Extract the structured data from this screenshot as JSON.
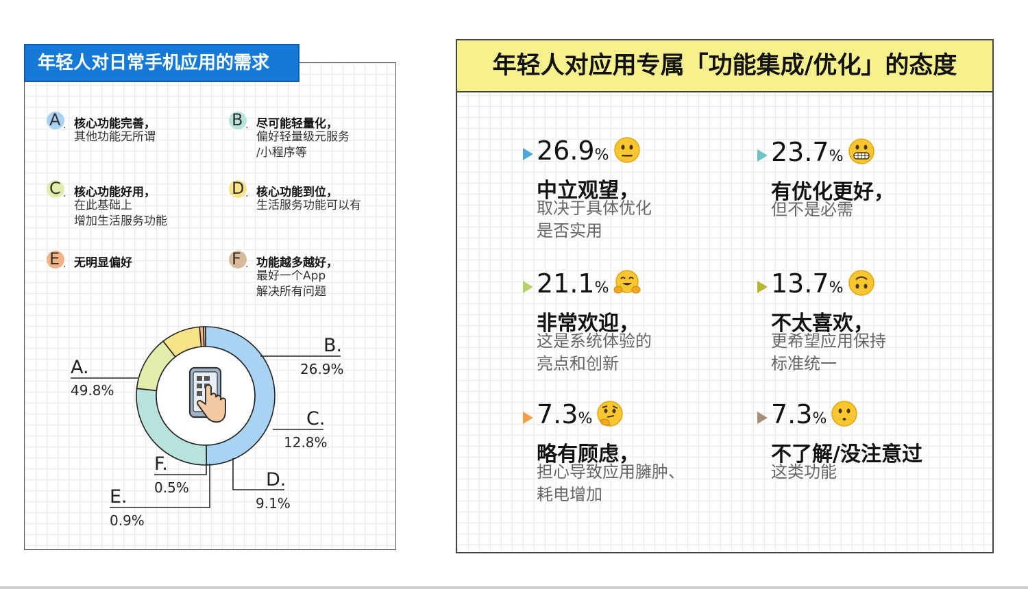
{
  "left": {
    "title": "年轻人对日常手机应用的需求",
    "options": [
      {
        "letter": "A",
        "head": "核心功能完善，",
        "sub": [
          "其他功能无所谓"
        ],
        "color": "#a9d3f3"
      },
      {
        "letter": "B",
        "head": "尽可能轻量化，",
        "sub": [
          "偏好轻量级元服务",
          "/小程序等"
        ],
        "color": "#b7e3dc"
      },
      {
        "letter": "C",
        "head": "核心功能好用，",
        "sub": [
          "在此基础上",
          "增加生活服务功能"
        ],
        "color": "#e3ecaa"
      },
      {
        "letter": "D",
        "head": "核心功能到位，",
        "sub": [
          "生活服务功能可以有"
        ],
        "color": "#f7e488"
      },
      {
        "letter": "E",
        "head": "无明显偏好",
        "sub": [],
        "color": "#f2b487"
      },
      {
        "letter": "F",
        "head": "功能越多越好，",
        "sub": [
          "最好一个App",
          "解决所有问题"
        ],
        "color": "#d8b99a"
      }
    ]
  },
  "chart_data": {
    "type": "pie",
    "categories": [
      "A.",
      "B.",
      "C.",
      "D.",
      "E.",
      "F."
    ],
    "values": [
      49.8,
      26.9,
      12.8,
      9.1,
      0.9,
      0.5
    ],
    "value_labels": [
      "49.8%",
      "26.9%",
      "12.8%",
      "9.1%",
      "0.9%",
      "0.5%"
    ],
    "colors": [
      "#a9d3f3",
      "#b7e3dc",
      "#e3ecaa",
      "#f7e488",
      "#f2b487",
      "#d8b99a"
    ],
    "donut": true,
    "start_angle_deg": 0,
    "direction": "clockwise"
  },
  "right": {
    "title": "年轻人对应用专属「功能集成/优化」的态度",
    "items": [
      {
        "value": "26.9",
        "unit": "%",
        "emoji": "neutral-face-icon",
        "head": "中立观望，",
        "sub": [
          "取决于具体优化",
          "是否实用"
        ],
        "color": "#4ea7d8"
      },
      {
        "value": "23.7",
        "unit": "%",
        "emoji": "grimacing-face-icon",
        "head": "有优化更好，",
        "sub": [
          "但不是必需"
        ],
        "color": "#6cc3c7"
      },
      {
        "value": "21.1",
        "unit": "%",
        "emoji": "hugging-face-icon",
        "head": "非常欢迎，",
        "sub": [
          "这是系统体验的",
          "亮点和创新"
        ],
        "color": "#b5d36b"
      },
      {
        "value": "13.7",
        "unit": "%",
        "emoji": "upside-down-face-icon",
        "head": "不太喜欢，",
        "sub": [
          "更希望应用保持",
          "标准统一"
        ],
        "color": "#b9b42a"
      },
      {
        "value": "7.3",
        "unit": "%",
        "emoji": "thinking-face-icon",
        "head": "略有顾虑，",
        "sub": [
          "担心导致应用臃肿、",
          "耗电增加"
        ],
        "color": "#f2a04e"
      },
      {
        "value": "7.3",
        "unit": "%",
        "emoji": "hushed-face-icon",
        "head": "不了解/没注意过",
        "sub": [
          "这类功能"
        ],
        "color": "#a88e74"
      }
    ]
  }
}
